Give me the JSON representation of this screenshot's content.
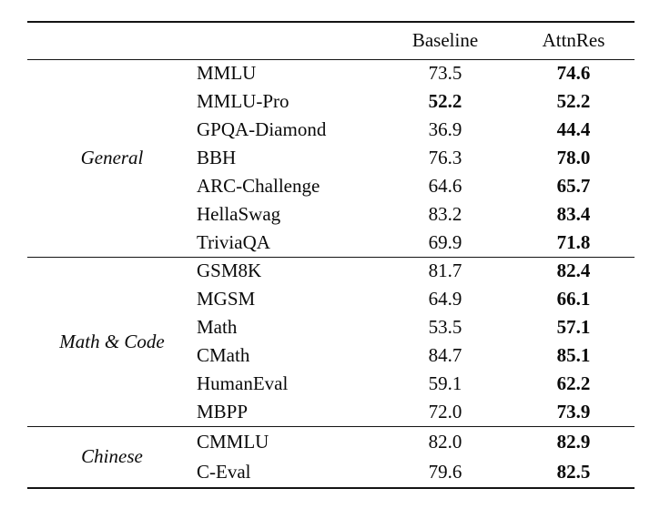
{
  "table": {
    "columns": [
      "Baseline",
      "AttnRes"
    ],
    "sections": [
      {
        "category": "General",
        "rows": [
          {
            "benchmark": "MMLU",
            "baseline": "73.5",
            "attnres": "74.6",
            "baseline_bold": false,
            "attnres_bold": true
          },
          {
            "benchmark": "MMLU-Pro",
            "baseline": "52.2",
            "attnres": "52.2",
            "baseline_bold": true,
            "attnres_bold": true
          },
          {
            "benchmark": "GPQA-Diamond",
            "baseline": "36.9",
            "attnres": "44.4",
            "baseline_bold": false,
            "attnres_bold": true
          },
          {
            "benchmark": "BBH",
            "baseline": "76.3",
            "attnres": "78.0",
            "baseline_bold": false,
            "attnres_bold": true
          },
          {
            "benchmark": "ARC-Challenge",
            "baseline": "64.6",
            "attnres": "65.7",
            "baseline_bold": false,
            "attnres_bold": true
          },
          {
            "benchmark": "HellaSwag",
            "baseline": "83.2",
            "attnres": "83.4",
            "baseline_bold": false,
            "attnres_bold": true
          },
          {
            "benchmark": "TriviaQA",
            "baseline": "69.9",
            "attnres": "71.8",
            "baseline_bold": false,
            "attnres_bold": true
          }
        ]
      },
      {
        "category": "Math & Code",
        "rows": [
          {
            "benchmark": "GSM8K",
            "baseline": "81.7",
            "attnres": "82.4",
            "baseline_bold": false,
            "attnres_bold": true
          },
          {
            "benchmark": "MGSM",
            "baseline": "64.9",
            "attnres": "66.1",
            "baseline_bold": false,
            "attnres_bold": true
          },
          {
            "benchmark": "Math",
            "baseline": "53.5",
            "attnres": "57.1",
            "baseline_bold": false,
            "attnres_bold": true
          },
          {
            "benchmark": "CMath",
            "baseline": "84.7",
            "attnres": "85.1",
            "baseline_bold": false,
            "attnres_bold": true
          },
          {
            "benchmark": "HumanEval",
            "baseline": "59.1",
            "attnres": "62.2",
            "baseline_bold": false,
            "attnres_bold": true
          },
          {
            "benchmark": "MBPP",
            "baseline": "72.0",
            "attnres": "73.9",
            "baseline_bold": false,
            "attnres_bold": true
          }
        ]
      },
      {
        "category": "Chinese",
        "rows": [
          {
            "benchmark": "CMMLU",
            "baseline": "82.0",
            "attnres": "82.9",
            "baseline_bold": false,
            "attnres_bold": true
          },
          {
            "benchmark": "C-Eval",
            "baseline": "79.6",
            "attnres": "82.5",
            "baseline_bold": false,
            "attnres_bold": true
          }
        ]
      }
    ]
  },
  "colors": {
    "text": "#0a0a0a",
    "rule": "#141414",
    "background": "#ffffff"
  }
}
